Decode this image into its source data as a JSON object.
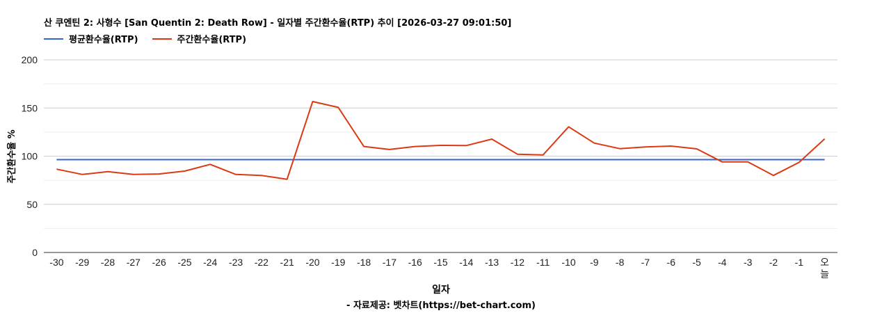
{
  "title": "산 쿠엔틴 2: 사형수 [San Quentin 2: Death Row] - 일자별 주간환수율(RTP) 추이 [2026-03-27 09:01:50]",
  "legend": [
    {
      "name": "평균환수율(RTP)",
      "color": "#3366cc"
    },
    {
      "name": "주간환수율(RTP)",
      "color": "#dc3912"
    }
  ],
  "ylabel": "주간환수율 %",
  "xlabel": "일자",
  "credit": "- 자료제공: 벳차트(https://bet-chart.com)",
  "chart_data": {
    "type": "line",
    "title": "산 쿠엔틴 2: 사형수 [San Quentin 2: Death Row] - 일자별 주간환수율(RTP) 추이 [2026-03-27 09:01:50]",
    "xlabel": "일자",
    "ylabel": "주간환수율 %",
    "ylim": [
      0,
      200
    ],
    "yticks": [
      0,
      50,
      100,
      150,
      200
    ],
    "grid": true,
    "legend_position": "top-left",
    "categories": [
      "-30",
      "-29",
      "-28",
      "-27",
      "-26",
      "-25",
      "-24",
      "-23",
      "-22",
      "-21",
      "-20",
      "-19",
      "-18",
      "-17",
      "-16",
      "-15",
      "-14",
      "-13",
      "-12",
      "-11",
      "-10",
      "-9",
      "-8",
      "-7",
      "-6",
      "-5",
      "-4",
      "-3",
      "-2",
      "-1",
      "오늘"
    ],
    "series": [
      {
        "name": "평균환수율(RTP)",
        "color": "#3366cc",
        "values": [
          96.4,
          96.4,
          96.4,
          96.4,
          96.4,
          96.4,
          96.4,
          96.4,
          96.4,
          96.4,
          96.4,
          96.4,
          96.4,
          96.4,
          96.4,
          96.4,
          96.4,
          96.4,
          96.4,
          96.4,
          96.4,
          96.4,
          96.4,
          96.4,
          96.4,
          96.4,
          96.4,
          96.4,
          96.4,
          96.4,
          96.4
        ]
      },
      {
        "name": "주간환수율(RTP)",
        "color": "#dc3912",
        "values": [
          86.5,
          81,
          84,
          81,
          81.5,
          84.5,
          91.5,
          81,
          80,
          76,
          156.7,
          150.6,
          110,
          106.9,
          110,
          111.2,
          111,
          117.7,
          102,
          101.3,
          130.5,
          113.6,
          107.8,
          109.5,
          110.5,
          107.6,
          94,
          94,
          80,
          93.6,
          118
        ]
      }
    ]
  }
}
